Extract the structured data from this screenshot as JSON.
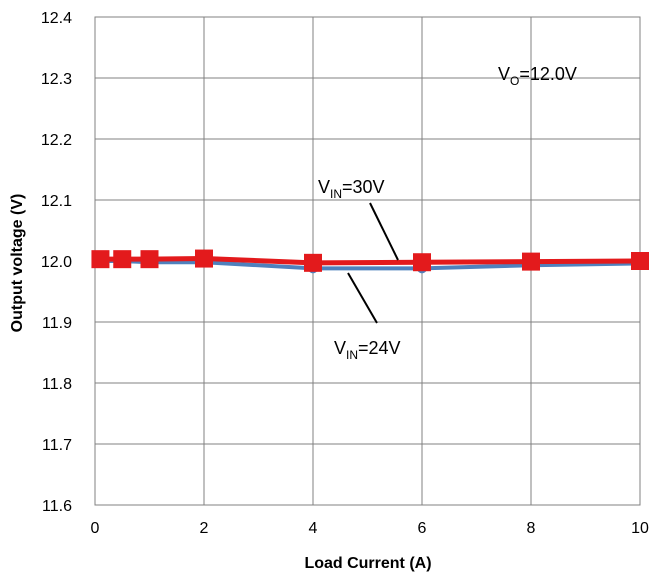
{
  "chart_data": {
    "type": "line",
    "xlabel": "Load Current (A)",
    "ylabel": "Output voltage (V)",
    "xlim": [
      0,
      10
    ],
    "ylim": [
      11.6,
      12.4
    ],
    "xticks": [
      "0",
      "2",
      "4",
      "6",
      "8",
      "10"
    ],
    "yticks": [
      "11.6",
      "11.7",
      "11.8",
      "11.9",
      "12.0",
      "12.1",
      "12.2",
      "12.3",
      "12.4"
    ],
    "grid": true,
    "series": [
      {
        "name": "VIN=24V",
        "color": "#4F81BD",
        "x": [
          0.1,
          0.5,
          1,
          2,
          4,
          6,
          8,
          10
        ],
        "y": [
          12.0,
          12.0,
          11.998,
          11.998,
          11.988,
          11.988,
          11.993,
          11.996
        ]
      },
      {
        "name": "VIN=30V",
        "color": "#E31A1C",
        "x": [
          0.1,
          0.5,
          1,
          2,
          4,
          6,
          8,
          10
        ],
        "y": [
          12.003,
          12.003,
          12.003,
          12.004,
          11.997,
          11.998,
          11.999,
          12.0
        ]
      }
    ],
    "annotations": [
      {
        "main": "V",
        "sub": "O",
        "rest": "=12.0V"
      },
      {
        "main": "V",
        "sub": "IN",
        "rest": "=30V"
      },
      {
        "main": "V",
        "sub": "IN",
        "rest": "=24V"
      }
    ]
  }
}
